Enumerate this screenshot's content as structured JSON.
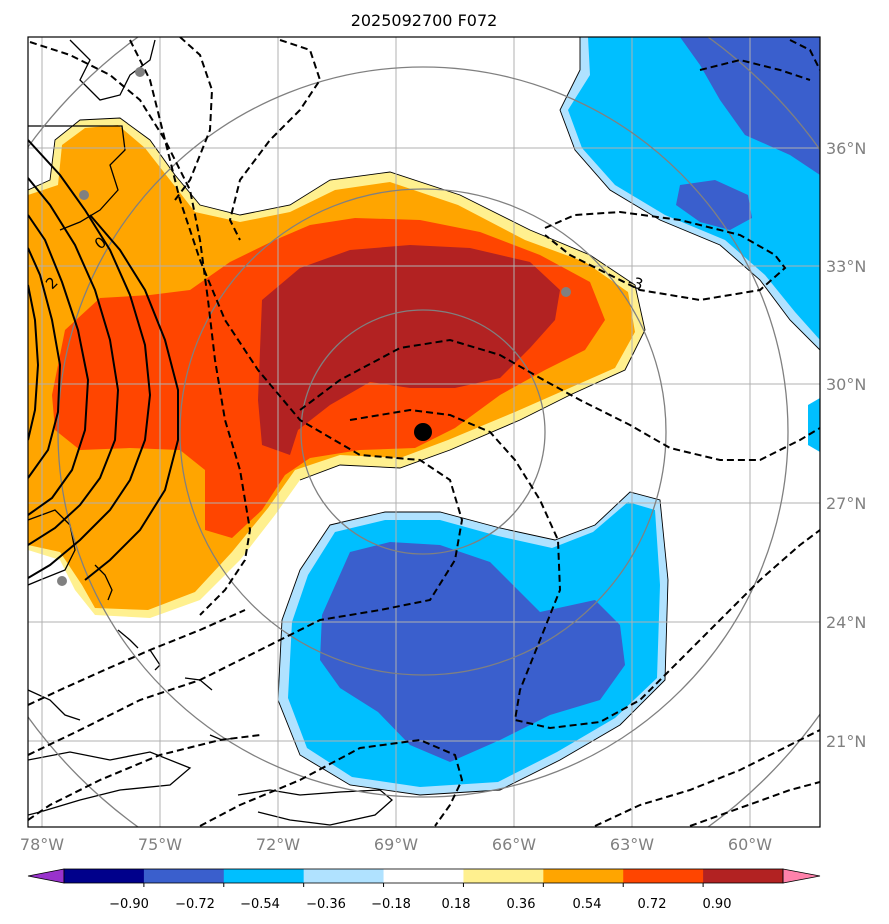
{
  "title": "2025092700 F072",
  "axes": {
    "lon_ticks": [
      "78°W",
      "75°W",
      "72°W",
      "69°W",
      "66°W",
      "63°W",
      "60°W"
    ],
    "lat_ticks": [
      "36°N",
      "33°N",
      "30°N",
      "27°N",
      "24°N",
      "21°N"
    ]
  },
  "colorbar": {
    "colors": [
      "#9932cc",
      "#00008b",
      "#3a5fcd",
      "#00bfff",
      "#b0e2ff",
      "#ffffff",
      "#fff08f",
      "#ffa500",
      "#ff4500",
      "#b22222",
      "#ff82ab"
    ],
    "labels": [
      "−0.90",
      "−0.72",
      "−0.54",
      "−0.36",
      "−0.18",
      "0.18",
      "0.36",
      "0.54",
      "0.72",
      "0.90"
    ]
  },
  "contour_labels": {
    "zero": "0",
    "two": "2",
    "minus_three": "-3"
  },
  "storm_center": {
    "lon": -68.3,
    "lat": 28.8
  }
}
